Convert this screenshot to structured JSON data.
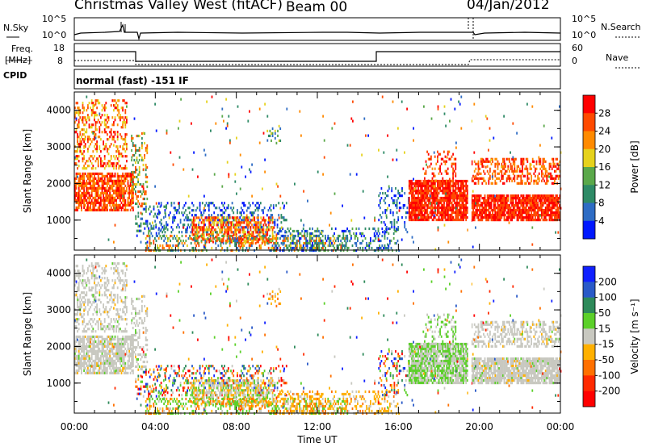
{
  "header": {
    "title": "Christmas Valley West (fitACF)",
    "beam": "Beam 00",
    "date": "04/Jan/2012"
  },
  "noise_panel": {
    "left_label": "N.Sky",
    "right_label": "N.Search",
    "left_ticks": [
      "10^5",
      "10^0"
    ],
    "right_ticks": [
      "10^5",
      "10^0"
    ]
  },
  "freq_panel": {
    "left_label_1": "Freq.",
    "left_label_2": "[MHz]",
    "right_label": "Nave",
    "left_ticks": [
      "18",
      "8"
    ],
    "right_ticks": [
      "60",
      "0"
    ]
  },
  "cpid": {
    "label": "CPID",
    "text": "normal (fast) -151 IF"
  },
  "chart_data": [
    {
      "type": "heatmap",
      "name": "power",
      "ylabel": "Slant Range [km]",
      "ylim": [
        180,
        4500
      ],
      "xlim": [
        0,
        24
      ],
      "y_ticks": [
        1000,
        2000,
        3000,
        4000
      ],
      "colorbar": {
        "label": "Power [dB]",
        "ticks": [
          "4",
          "8",
          "12",
          "16",
          "20",
          "24",
          "28"
        ],
        "colors": [
          "#0018ff",
          "#2e6cc4",
          "#2e8a66",
          "#5aa84a",
          "#e6d21c",
          "#ff8a00",
          "#ff4a00",
          "#ff0000"
        ]
      }
    },
    {
      "type": "heatmap",
      "name": "velocity",
      "ylabel": "Slant Range [km]",
      "ylim": [
        180,
        4500
      ],
      "xlim": [
        0,
        24
      ],
      "y_ticks": [
        1000,
        2000,
        3000,
        4000
      ],
      "colorbar": {
        "label": "Velocity [m s⁻¹]",
        "ticks": [
          "200",
          "100",
          "50",
          "15",
          "-15",
          "-50",
          "-100",
          "-200"
        ],
        "colors": [
          "#1020ff",
          "#2a5ac8",
          "#2e8a5a",
          "#5cd02a",
          "#c8c8c0",
          "#ffb000",
          "#ff7000",
          "#ff2a00",
          "#ff0000"
        ]
      }
    }
  ],
  "x_axis": {
    "ticks": [
      "00:00",
      "04:00",
      "08:00",
      "12:00",
      "16:00",
      "20:00",
      "00:00"
    ],
    "label": "Time UT"
  }
}
